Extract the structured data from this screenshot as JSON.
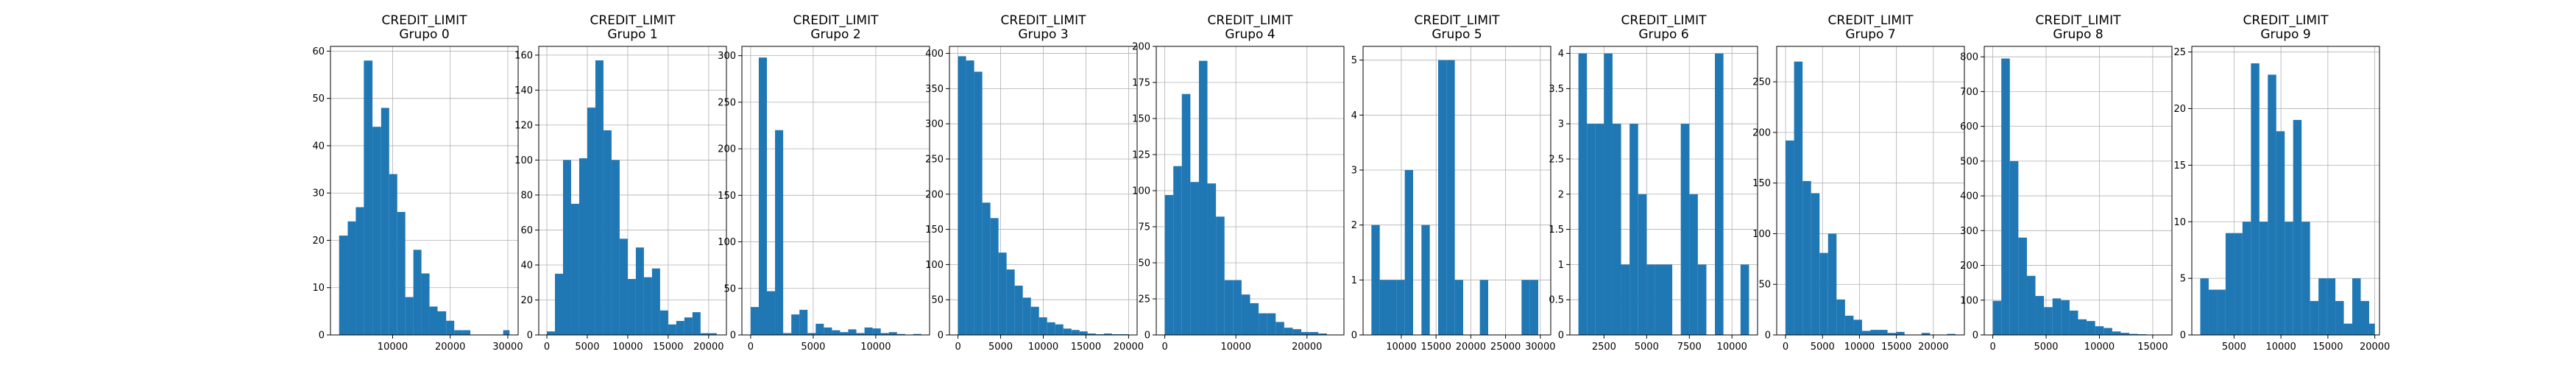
{
  "chart_data": [
    {
      "type": "bar",
      "title": "CREDIT_LIMIT",
      "subtitle": "Grupo 0",
      "xlim": [
        -800,
        31800
      ],
      "ylim": [
        0,
        61
      ],
      "xticks": [
        10000,
        20000,
        30000
      ],
      "yticks": [
        0,
        10,
        20,
        30,
        40,
        50,
        60
      ],
      "bin_edges": [
        700,
        2200,
        3600,
        5000,
        6500,
        8000,
        9400,
        10800,
        12200,
        13600,
        15000,
        16400,
        17800,
        19300,
        20700,
        22100,
        23500,
        24900,
        26300,
        27800,
        29200,
        30300
      ],
      "values": [
        21,
        24,
        27,
        58,
        44,
        48,
        34,
        26,
        8,
        18,
        13,
        6,
        5,
        3,
        1,
        1,
        0,
        0,
        0,
        0,
        1
      ]
    },
    {
      "type": "bar",
      "title": "CREDIT_LIMIT",
      "subtitle": "Grupo 1",
      "xlim": [
        -1000,
        22200
      ],
      "ylim": [
        0,
        165
      ],
      "xticks": [
        0,
        5000,
        10000,
        15000,
        20000
      ],
      "yticks": [
        0,
        20,
        40,
        60,
        80,
        100,
        120,
        140,
        160
      ],
      "bin_edges": [
        0,
        1000,
        2000,
        3000,
        4000,
        5000,
        6000,
        7000,
        8000,
        9000,
        10000,
        11000,
        12000,
        13000,
        14000,
        15000,
        16000,
        17000,
        18000,
        19000,
        20000,
        21000
      ],
      "values": [
        2,
        35,
        100,
        75,
        101,
        130,
        157,
        117,
        100,
        55,
        32,
        50,
        33,
        38,
        14,
        6,
        8,
        10,
        13,
        1,
        1
      ]
    },
    {
      "type": "bar",
      "title": "CREDIT_LIMIT",
      "subtitle": "Grupo 2",
      "xlim": [
        -700,
        14300
      ],
      "ylim": [
        0,
        310
      ],
      "xticks": [
        0,
        5000,
        10000
      ],
      "yticks": [
        0,
        50,
        100,
        150,
        200,
        250,
        300
      ],
      "bin_edges": [
        0,
        650,
        1300,
        1950,
        2600,
        3250,
        3900,
        4550,
        5200,
        5850,
        6500,
        7150,
        7800,
        8450,
        9100,
        9750,
        10400,
        11050,
        11700,
        12350,
        13000,
        13650
      ],
      "values": [
        30,
        298,
        47,
        220,
        2,
        22,
        27,
        2,
        12,
        8,
        5,
        3,
        6,
        2,
        8,
        7,
        2,
        3,
        1,
        0,
        1
      ]
    },
    {
      "type": "bar",
      "title": "CREDIT_LIMIT",
      "subtitle": "Grupo 3",
      "xlim": [
        -1000,
        21000
      ],
      "ylim": [
        0,
        410
      ],
      "xticks": [
        0,
        5000,
        10000,
        15000,
        20000
      ],
      "yticks": [
        0,
        50,
        100,
        150,
        200,
        250,
        300,
        350,
        400
      ],
      "bin_edges": [
        0,
        950,
        1900,
        2850,
        3800,
        4750,
        5700,
        6650,
        7600,
        8550,
        9500,
        10450,
        11400,
        12350,
        13300,
        14250,
        15200,
        16150,
        17100,
        18050,
        19000,
        19950
      ],
      "values": [
        396,
        390,
        374,
        188,
        166,
        117,
        93,
        70,
        53,
        40,
        25,
        18,
        15,
        9,
        7,
        5,
        2,
        1,
        2,
        1,
        1
      ]
    },
    {
      "type": "bar",
      "title": "CREDIT_LIMIT",
      "subtitle": "Grupo 4",
      "xlim": [
        -1200,
        25200
      ],
      "ylim": [
        0,
        200
      ],
      "xticks": [
        0,
        10000,
        20000
      ],
      "yticks": [
        0,
        25,
        50,
        75,
        100,
        125,
        150,
        175,
        200
      ],
      "bin_edges": [
        0,
        1200,
        2400,
        3600,
        4800,
        6000,
        7200,
        8400,
        9600,
        10800,
        12000,
        13200,
        14400,
        15600,
        16800,
        18000,
        19200,
        20400,
        21600,
        22800,
        24000
      ],
      "values": [
        97,
        117,
        167,
        106,
        190,
        105,
        82,
        38,
        38,
        28,
        22,
        15,
        15,
        9,
        5,
        4,
        2,
        2,
        1,
        0
      ]
    },
    {
      "type": "bar",
      "title": "CREDIT_LIMIT",
      "subtitle": "Grupo 5",
      "xlim": [
        4500,
        31500
      ],
      "ylim": [
        0,
        5.25
      ],
      "xticks": [
        10000,
        15000,
        20000,
        25000,
        30000
      ],
      "yticks": [
        0,
        1,
        2,
        3,
        4,
        5
      ],
      "bin_edges": [
        5700,
        6900,
        8100,
        9300,
        10500,
        11700,
        12900,
        14100,
        15300,
        16500,
        17700,
        18900,
        20100,
        21300,
        22500,
        23700,
        24900,
        26100,
        27300,
        28500,
        29700,
        30900
      ],
      "values": [
        2,
        1,
        1,
        1,
        3,
        0,
        2,
        0,
        5,
        5,
        1,
        0,
        0,
        1,
        0,
        0,
        0,
        0,
        1,
        1,
        0
      ]
    },
    {
      "type": "bar",
      "title": "CREDIT_LIMIT",
      "subtitle": "Grupo 6",
      "xlim": [
        500,
        11500
      ],
      "ylim": [
        0,
        4.1
      ],
      "xticks": [
        2500,
        5000,
        7500,
        10000
      ],
      "yticks": [
        0,
        0.5,
        1.0,
        1.5,
        2.0,
        2.5,
        3.0,
        3.5,
        4.0
      ],
      "bin_edges": [
        1000,
        1500,
        2000,
        2500,
        3000,
        3500,
        4000,
        4500,
        5000,
        5500,
        6000,
        6500,
        7000,
        7500,
        8000,
        8500,
        9000,
        9500,
        10000,
        10500,
        11000
      ],
      "values": [
        4,
        3,
        3,
        4,
        3,
        1,
        3,
        2,
        1,
        1,
        1,
        0,
        3,
        2,
        1,
        0,
        4,
        0,
        0,
        1
      ]
    },
    {
      "type": "bar",
      "title": "CREDIT_LIMIT",
      "subtitle": "Grupo 7",
      "xlim": [
        -1200,
        24200
      ],
      "ylim": [
        0,
        285
      ],
      "xticks": [
        0,
        5000,
        10000,
        15000,
        20000
      ],
      "yticks": [
        0,
        50,
        100,
        150,
        200,
        250
      ],
      "bin_edges": [
        0,
        1150,
        2300,
        3450,
        4600,
        5750,
        6900,
        8050,
        9200,
        10350,
        11500,
        12650,
        13800,
        14950,
        16100,
        17250,
        18400,
        19550,
        20700,
        21850,
        23000
      ],
      "values": [
        192,
        270,
        152,
        140,
        81,
        100,
        35,
        19,
        15,
        4,
        5,
        5,
        2,
        3,
        0,
        0,
        2,
        0,
        0,
        1
      ]
    },
    {
      "type": "bar",
      "title": "CREDIT_LIMIT",
      "subtitle": "Grupo 8",
      "xlim": [
        -800,
        16800
      ],
      "ylim": [
        0,
        830
      ],
      "xticks": [
        0,
        5000,
        10000,
        15000
      ],
      "yticks": [
        0,
        100,
        200,
        300,
        400,
        500,
        600,
        700,
        800
      ],
      "bin_edges": [
        0,
        800,
        1600,
        2400,
        3200,
        4000,
        4800,
        5600,
        6400,
        7200,
        8000,
        8800,
        9600,
        10400,
        11200,
        12000,
        12800,
        13600,
        14400,
        15200,
        16000
      ],
      "values": [
        98,
        795,
        500,
        280,
        170,
        112,
        80,
        105,
        100,
        70,
        45,
        40,
        25,
        20,
        10,
        6,
        3,
        2,
        1,
        1
      ]
    },
    {
      "type": "bar",
      "title": "CREDIT_LIMIT",
      "subtitle": "Grupo 9",
      "xlim": [
        500,
        20500
      ],
      "ylim": [
        0,
        25.5
      ],
      "xticks": [
        5000,
        10000,
        15000,
        20000
      ],
      "yticks": [
        0,
        5,
        10,
        15,
        20,
        25
      ],
      "bin_edges": [
        1400,
        2300,
        3200,
        4100,
        5000,
        5900,
        6800,
        7700,
        8600,
        9500,
        10400,
        11300,
        12200,
        13100,
        14000,
        14900,
        15800,
        16700,
        17600,
        18500,
        19400,
        20000
      ],
      "values": [
        5,
        4,
        4,
        9,
        9,
        10,
        24,
        10,
        23,
        18,
        10,
        19,
        10,
        3,
        5,
        5,
        3,
        1,
        5,
        3,
        1
      ]
    }
  ]
}
